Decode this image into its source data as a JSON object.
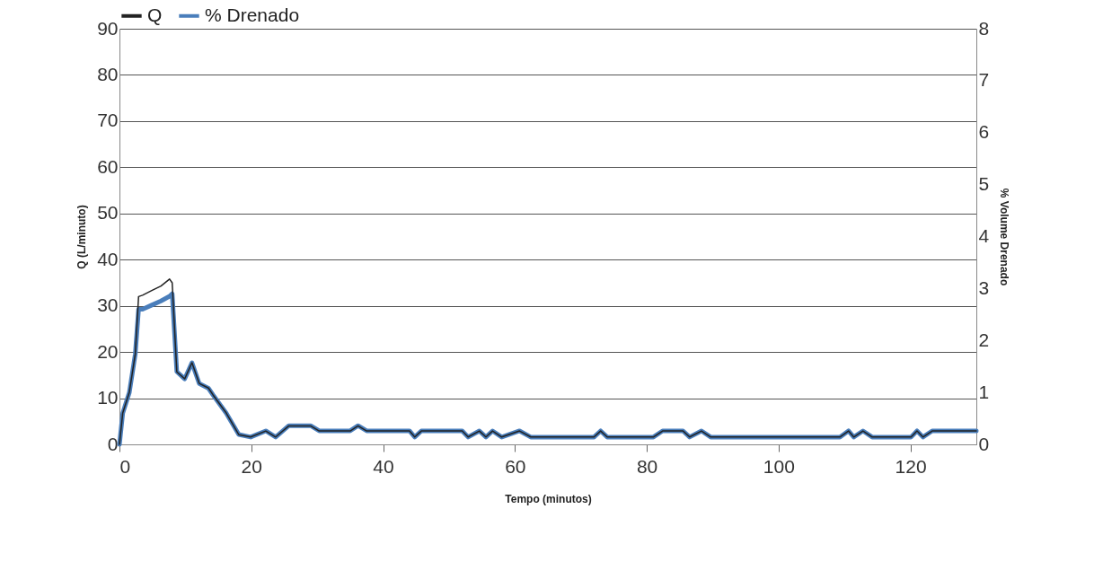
{
  "chart_data": {
    "type": "line",
    "xlabel": "Tempo (minutos)",
    "ylabel": "Q (L/minuto)",
    "y2label": "% Volume Drenado",
    "x": [
      0,
      0.5,
      1.5,
      2.4,
      2.9,
      3.5,
      4.9,
      6.3,
      7.6,
      8.0,
      8.7,
      9.9,
      11.0,
      12.1,
      13.5,
      14.2,
      16.2,
      18.1,
      19.9,
      22.2,
      23.7,
      25.7,
      29,
      30.3,
      35,
      36.2,
      37.5,
      44,
      44.8,
      45.8,
      52,
      52.9,
      54.6,
      55.6,
      56.6,
      58,
      60.7,
      62.4,
      72,
      73,
      74,
      81,
      82.4,
      85.5,
      86.5,
      88.3,
      89.7,
      109.3,
      110.6,
      111.4,
      112.8,
      114.2,
      120.1,
      121,
      121.9,
      123.3,
      130
    ],
    "series": [
      {
        "name": "Q",
        "color": "#222222",
        "values": [
          0,
          6.8,
          11.3,
          19.6,
          32,
          32.3,
          33.3,
          34.3,
          35.8,
          35,
          15.7,
          14.2,
          17.7,
          13.2,
          12.2,
          10.7,
          6.8,
          2.1,
          1.6,
          2.9,
          1.6,
          4,
          4,
          2.9,
          2.9,
          4,
          2.9,
          2.9,
          1.6,
          2.9,
          2.9,
          1.6,
          2.9,
          1.6,
          2.9,
          1.6,
          2.9,
          1.6,
          1.6,
          2.9,
          1.6,
          1.6,
          2.9,
          2.9,
          1.6,
          2.9,
          1.6,
          1.6,
          2.9,
          1.6,
          2.9,
          1.6,
          1.6,
          2.9,
          1.6,
          2.9,
          2.9
        ]
      },
      {
        "name": "% Drenado",
        "color": "#4a7ebb",
        "axis": "y2",
        "values": [
          0,
          0.6,
          1.0,
          1.74,
          2.6,
          2.6,
          2.68,
          2.76,
          2.85,
          2.9,
          1.4,
          1.26,
          1.57,
          1.17,
          1.08,
          0.95,
          0.6,
          0.19,
          0.14,
          0.26,
          0.14,
          0.36,
          0.36,
          0.26,
          0.26,
          0.36,
          0.26,
          0.26,
          0.14,
          0.26,
          0.26,
          0.14,
          0.26,
          0.14,
          0.26,
          0.14,
          0.26,
          0.14,
          0.14,
          0.26,
          0.14,
          0.14,
          0.26,
          0.26,
          0.14,
          0.26,
          0.14,
          0.14,
          0.26,
          0.14,
          0.26,
          0.14,
          0.14,
          0.26,
          0.14,
          0.26,
          0.26
        ]
      }
    ],
    "xlim": [
      0,
      130
    ],
    "xticks": [
      0,
      20,
      40,
      60,
      80,
      100,
      120
    ],
    "ylim": [
      0,
      90
    ],
    "yticks": [
      0,
      10,
      20,
      30,
      40,
      50,
      60,
      70,
      80,
      90
    ],
    "y2lim": [
      0,
      8
    ],
    "y2ticks": [
      0,
      1,
      2,
      3,
      4,
      5,
      6,
      7,
      8
    ],
    "grid": "y",
    "legend": "top",
    "marker": "none",
    "line_style": "solid"
  }
}
